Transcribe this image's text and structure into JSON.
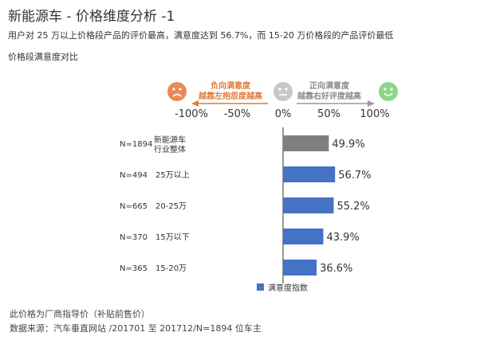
{
  "header": {
    "title": "新能源车 - 价格维度分析 -1",
    "subtitle_line1": "用户对 25 万以上价格段产品的评价最高，满意度达到 56.7%，而 15-20 万价格段的产品评价最低",
    "subtitle_line2": "价格段满意度对比"
  },
  "scale_legend": {
    "negative_label_1": "负向满意度",
    "negative_label_2": "越靠左抱怨度越高",
    "positive_label_1": "正向满意度",
    "positive_label_2": "越靠右好评度越高",
    "negative_face_icon": "sad-face-icon",
    "neutral_face_icon": "neutral-face-icon",
    "positive_face_icon": "happy-face-icon",
    "negative_color": "#e98a55",
    "neutral_color": "#c8c8c8",
    "positive_color": "#8cd68a"
  },
  "chart_data": {
    "type": "bar",
    "orientation": "horizontal",
    "xlim": [
      -100,
      100
    ],
    "x_ticks": [
      "-100%",
      "-50%",
      "0%",
      "50%",
      "100%"
    ],
    "categories": [
      {
        "n": "N=1894",
        "label_line1": "新能源车",
        "label_line2": "行业整体",
        "value": 49.9,
        "value_label": "49.9%",
        "color": "#7f7f7f"
      },
      {
        "n": "N=494",
        "label_line1": "25万以上",
        "label_line2": "",
        "value": 56.7,
        "value_label": "56.7%",
        "color": "#4472c4"
      },
      {
        "n": "N=665",
        "label_line1": "20-25万",
        "label_line2": "",
        "value": 55.2,
        "value_label": "55.2%",
        "color": "#4472c4"
      },
      {
        "n": "N=370",
        "label_line1": "15万以下",
        "label_line2": "",
        "value": 43.9,
        "value_label": "43.9%",
        "color": "#4472c4"
      },
      {
        "n": "N=365",
        "label_line1": "15-20万",
        "label_line2": "",
        "value": 36.6,
        "value_label": "36.6%",
        "color": "#4472c4"
      }
    ],
    "legend": {
      "label": "满意度指数",
      "color": "#4472c4",
      "position": "bottom"
    },
    "grid": false
  },
  "footer": {
    "note1": "此价格为厂商指导价（补贴前售价）",
    "note2": "数据来源：汽车垂直网站 /201701 至 201712/N=1894 位车主"
  }
}
